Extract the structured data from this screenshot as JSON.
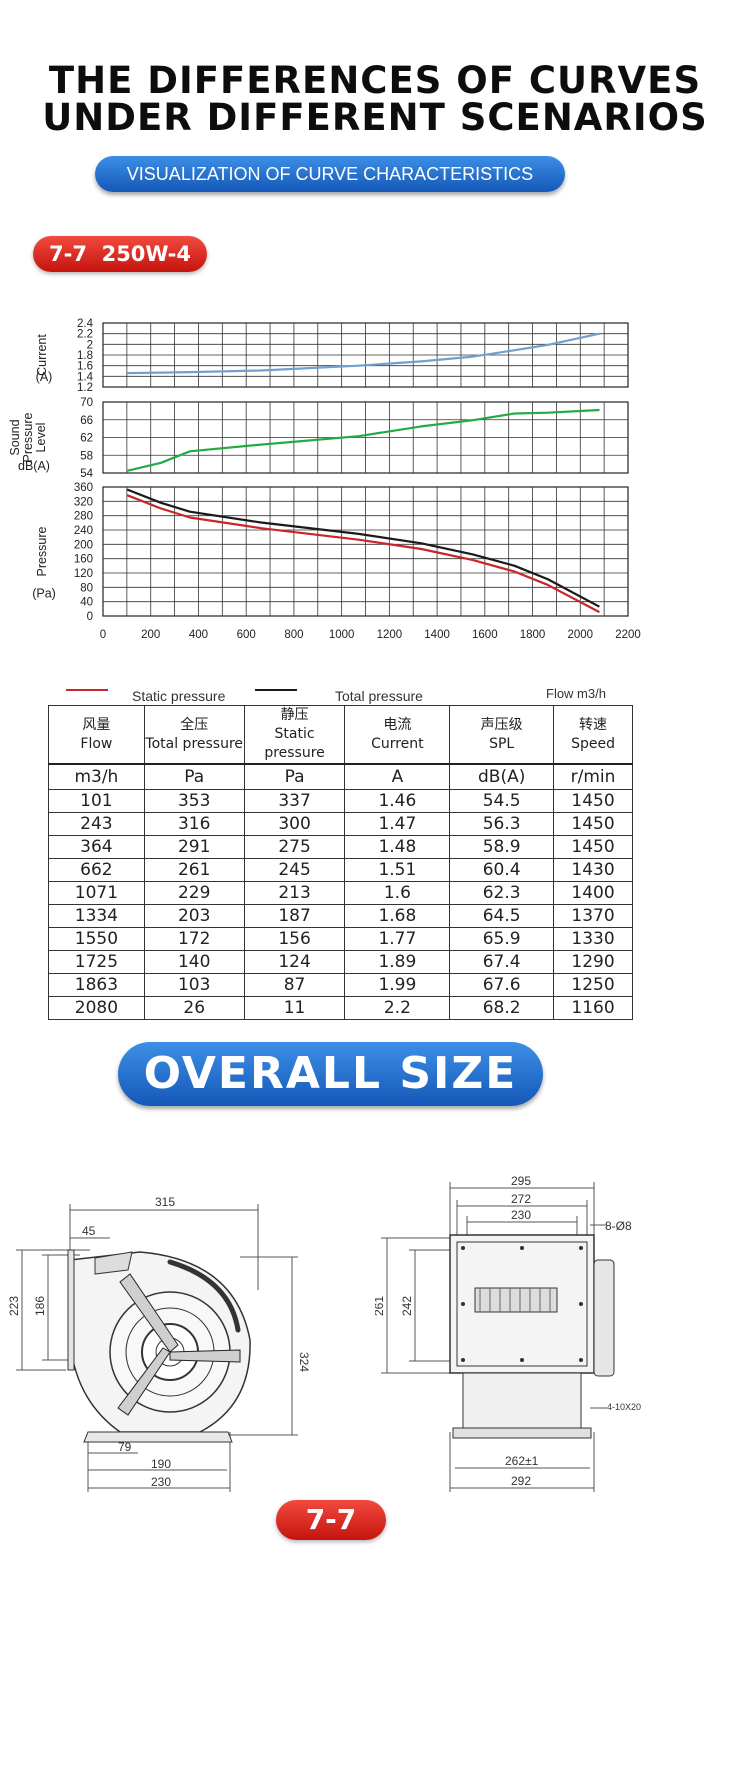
{
  "headline": {
    "line1": "THE DIFFERENCES OF CURVES",
    "line2": "UNDER DIFFERENT SCENARIOS"
  },
  "subtitle_button": "VISUALIZATION OF CURVE CHARACTERISTICS",
  "model_tag": "7-7  250W-4",
  "colors": {
    "current": "#6fa0cf",
    "spl": "#22aa44",
    "static": "#c8262a",
    "total": "#1a1a1a",
    "blue_pill": "#1f6fd1",
    "red_pill": "#d9221b"
  },
  "chart_data": {
    "type": "line",
    "x_ticks": [
      0,
      200,
      400,
      600,
      800,
      1000,
      1200,
      1400,
      1600,
      1800,
      2000,
      2200
    ],
    "xlim": [
      0,
      2200
    ],
    "grid": true,
    "panels": [
      {
        "ylabel": "Current (A)",
        "ylim": [
          1.2,
          2.4
        ],
        "y_ticks": [
          2.4,
          2.2,
          2,
          1.8,
          1.6,
          1.4,
          1.2
        ],
        "series": [
          {
            "x": [
              101,
              243,
              364,
              662,
              1071,
              1334,
              1550,
              1725,
              1863,
              2080
            ],
            "values": [
              1.46,
              1.47,
              1.48,
              1.51,
              1.6,
              1.68,
              1.77,
              1.89,
              1.99,
              2.2
            ]
          }
        ]
      },
      {
        "ylabel": "Sound Pressure Level dB(A)",
        "ylim": [
          54,
          70
        ],
        "y_ticks": [
          70,
          66,
          62,
          58,
          54
        ],
        "series": [
          {
            "x": [
              101,
              243,
              364,
              662,
              1071,
              1334,
              1550,
              1725,
              1863,
              2080
            ],
            "values": [
              54.5,
              56.3,
              58.9,
              60.4,
              62.3,
              64.5,
              65.9,
              67.4,
              67.6,
              68.2
            ]
          }
        ]
      },
      {
        "ylabel": "Pressure (Pa)",
        "ylim": [
          0,
          360
        ],
        "y_ticks": [
          360,
          320,
          280,
          240,
          200,
          160,
          120,
          80,
          40,
          0
        ],
        "series": [
          {
            "name": "Static pressure",
            "x": [
              101,
              243,
              364,
              662,
              1071,
              1334,
              1550,
              1725,
              1863,
              2080
            ],
            "values": [
              337,
              300,
              275,
              245,
              213,
              187,
              156,
              124,
              87,
              11
            ]
          },
          {
            "name": "Total pressure",
            "x": [
              101,
              243,
              364,
              662,
              1071,
              1334,
              1550,
              1725,
              1863,
              2080
            ],
            "values": [
              353,
              316,
              291,
              261,
              229,
              203,
              172,
              140,
              103,
              26
            ]
          }
        ]
      }
    ],
    "legend": {
      "static": "Static pressure",
      "total": "Total pressure",
      "unit": "Flow m3/h"
    }
  },
  "table": {
    "headers": [
      {
        "cn": "风量",
        "en": "Flow"
      },
      {
        "cn": "全压",
        "en": "Total pressure"
      },
      {
        "cn": "静压",
        "en": "Static pressure"
      },
      {
        "cn": "电流",
        "en": "Current"
      },
      {
        "cn": "声压级",
        "en": "SPL"
      },
      {
        "cn": "转速",
        "en": "Speed"
      }
    ],
    "units": [
      "m3/h",
      "Pa",
      "Pa",
      "A",
      "dB(A)",
      "r/min"
    ],
    "rows": [
      [
        "101",
        "353",
        "337",
        "1.46",
        "54.5",
        "1450"
      ],
      [
        "243",
        "316",
        "300",
        "1.47",
        "56.3",
        "1450"
      ],
      [
        "364",
        "291",
        "275",
        "1.48",
        "58.9",
        "1450"
      ],
      [
        "662",
        "261",
        "245",
        "1.51",
        "60.4",
        "1430"
      ],
      [
        "1071",
        "229",
        "213",
        "1.6",
        "62.3",
        "1400"
      ],
      [
        "1334",
        "203",
        "187",
        "1.68",
        "64.5",
        "1370"
      ],
      [
        "1550",
        "172",
        "156",
        "1.77",
        "65.9",
        "1330"
      ],
      [
        "1725",
        "140",
        "124",
        "1.89",
        "67.4",
        "1290"
      ],
      [
        "1863",
        "103",
        "87",
        "1.99",
        "67.6",
        "1250"
      ],
      [
        "2080",
        "26",
        "11",
        "2.2",
        "68.2",
        "1160"
      ]
    ]
  },
  "overall_size_button": "OVERALL SIZE",
  "drawing_side": {
    "d1": "315",
    "d2": "45",
    "d3": "223",
    "d4": "186",
    "d5": "324",
    "d6": "79",
    "d7": "190",
    "d8": "230"
  },
  "drawing_front": {
    "d1": "295",
    "d2": "272",
    "d3": "230",
    "d4": "8-Ø8",
    "d5": "261",
    "d6": "242",
    "d7": "4-10X20",
    "d8": "262±1",
    "d9": "292"
  },
  "bottom_tag": "7-7"
}
